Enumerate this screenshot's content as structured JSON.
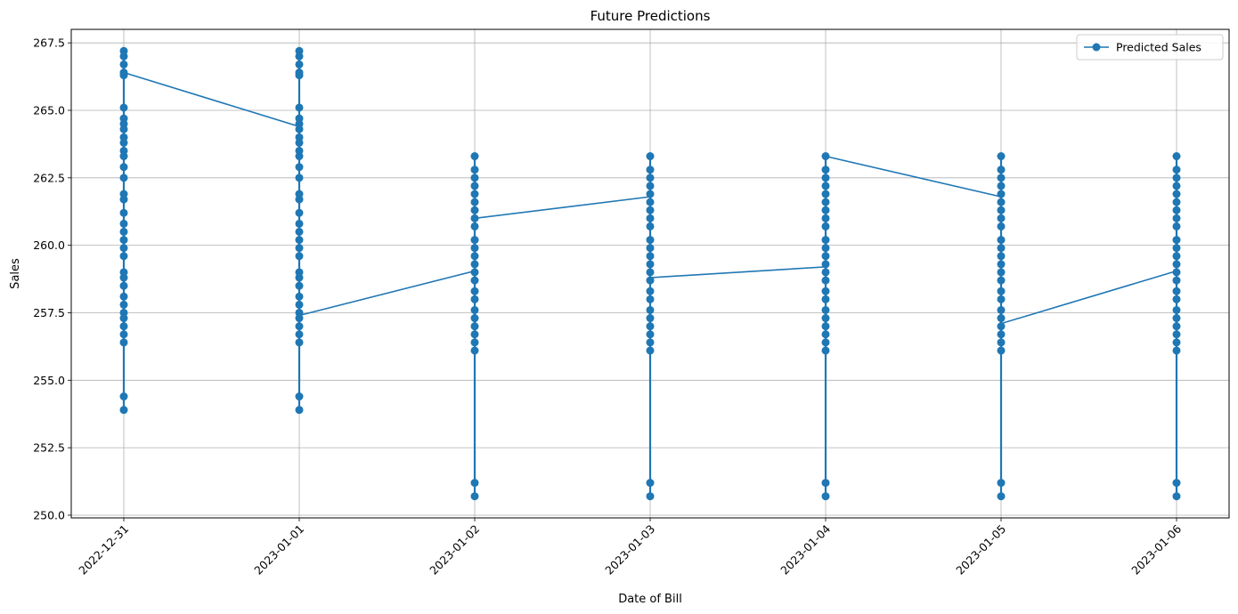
{
  "chart_data": {
    "type": "line",
    "title": "Future Predictions",
    "xlabel": "Date of Bill",
    "ylabel": "Sales",
    "categories": [
      "2022-12-31",
      "2023-01-01",
      "2023-01-02",
      "2023-01-03",
      "2023-01-04",
      "2023-01-05",
      "2023-01-06"
    ],
    "y_ticks": [
      "250.0",
      "252.5",
      "255.0",
      "257.5",
      "260.0",
      "262.5",
      "265.0",
      "267.5"
    ],
    "ylim": [
      249.9,
      268.0
    ],
    "grid": true,
    "legend_position": "top-right",
    "color": "#1f77b4",
    "series": [
      {
        "name": "Predicted Sales",
        "points": [
          {
            "x": "2022-12-31",
            "y": [
              267.2,
              267.0,
              266.7,
              266.4,
              266.3,
              265.1,
              264.7,
              264.5,
              264.3,
              264.0,
              263.8,
              263.5,
              263.3,
              262.9,
              262.5,
              261.9,
              261.7,
              261.2,
              260.8,
              260.5,
              260.2,
              259.9,
              259.6,
              259.0,
              258.8,
              258.5,
              258.1,
              257.8,
              257.5,
              257.3,
              257.0,
              256.7,
              256.4,
              254.4,
              253.9
            ]
          },
          {
            "x": "2023-01-01",
            "y": [
              267.2,
              267.0,
              266.7,
              266.4,
              266.3,
              265.1,
              264.7,
              264.5,
              264.3,
              264.0,
              263.8,
              263.5,
              263.3,
              262.9,
              262.5,
              261.9,
              261.7,
              261.2,
              260.8,
              260.5,
              260.2,
              259.9,
              259.6,
              259.0,
              258.8,
              258.5,
              258.1,
              257.8,
              257.5,
              257.3,
              257.0,
              256.7,
              256.4,
              254.4,
              253.9
            ]
          },
          {
            "x": "2023-01-02",
            "y": [
              263.3,
              262.8,
              262.5,
              262.2,
              261.9,
              261.6,
              261.3,
              261.0,
              260.7,
              260.2,
              259.9,
              259.6,
              259.3,
              259.0,
              258.7,
              258.3,
              258.0,
              257.6,
              257.3,
              257.0,
              256.7,
              256.4,
              256.1,
              251.2,
              250.7
            ]
          },
          {
            "x": "2023-01-03",
            "y": [
              263.3,
              262.8,
              262.5,
              262.2,
              261.9,
              261.6,
              261.3,
              261.0,
              260.7,
              260.2,
              259.9,
              259.6,
              259.3,
              259.0,
              258.7,
              258.3,
              258.0,
              257.6,
              257.3,
              257.0,
              256.7,
              256.4,
              256.1,
              251.2,
              250.7
            ]
          },
          {
            "x": "2023-01-04",
            "y": [
              263.3,
              262.8,
              262.5,
              262.2,
              261.9,
              261.6,
              261.3,
              261.0,
              260.7,
              260.2,
              259.9,
              259.6,
              259.3,
              259.0,
              258.7,
              258.3,
              258.0,
              257.6,
              257.3,
              257.0,
              256.7,
              256.4,
              256.1,
              251.2,
              250.7
            ]
          },
          {
            "x": "2023-01-05",
            "y": [
              263.3,
              262.8,
              262.5,
              262.2,
              261.9,
              261.6,
              261.3,
              261.0,
              260.7,
              260.2,
              259.9,
              259.6,
              259.3,
              259.0,
              258.7,
              258.3,
              258.0,
              257.6,
              257.3,
              257.0,
              256.7,
              256.4,
              256.1,
              251.2,
              250.7
            ]
          },
          {
            "x": "2023-01-06",
            "y": [
              263.3,
              262.8,
              262.5,
              262.2,
              261.9,
              261.6,
              261.3,
              261.0,
              260.7,
              260.2,
              259.9,
              259.6,
              259.3,
              259.0,
              258.7,
              258.3,
              258.0,
              257.6,
              257.3,
              257.0,
              256.7,
              256.4,
              256.1,
              251.2,
              250.7
            ]
          }
        ],
        "connecting_path": [
          {
            "x": "2022-12-31",
            "y": 266.4
          },
          {
            "x": "2023-01-01",
            "y": 264.4
          },
          {
            "x": "2023-01-01",
            "y": 257.4
          },
          {
            "x": "2023-01-02",
            "y": 259.05
          },
          {
            "x": "2023-01-02",
            "y": 261.0
          },
          {
            "x": "2023-01-03",
            "y": 261.8
          },
          {
            "x": "2023-01-03",
            "y": 258.8
          },
          {
            "x": "2023-01-04",
            "y": 259.2
          },
          {
            "x": "2023-01-04",
            "y": 263.3
          },
          {
            "x": "2023-01-05",
            "y": 261.8
          },
          {
            "x": "2023-01-05",
            "y": 257.1
          },
          {
            "x": "2023-01-06",
            "y": 259.05
          }
        ]
      }
    ]
  }
}
